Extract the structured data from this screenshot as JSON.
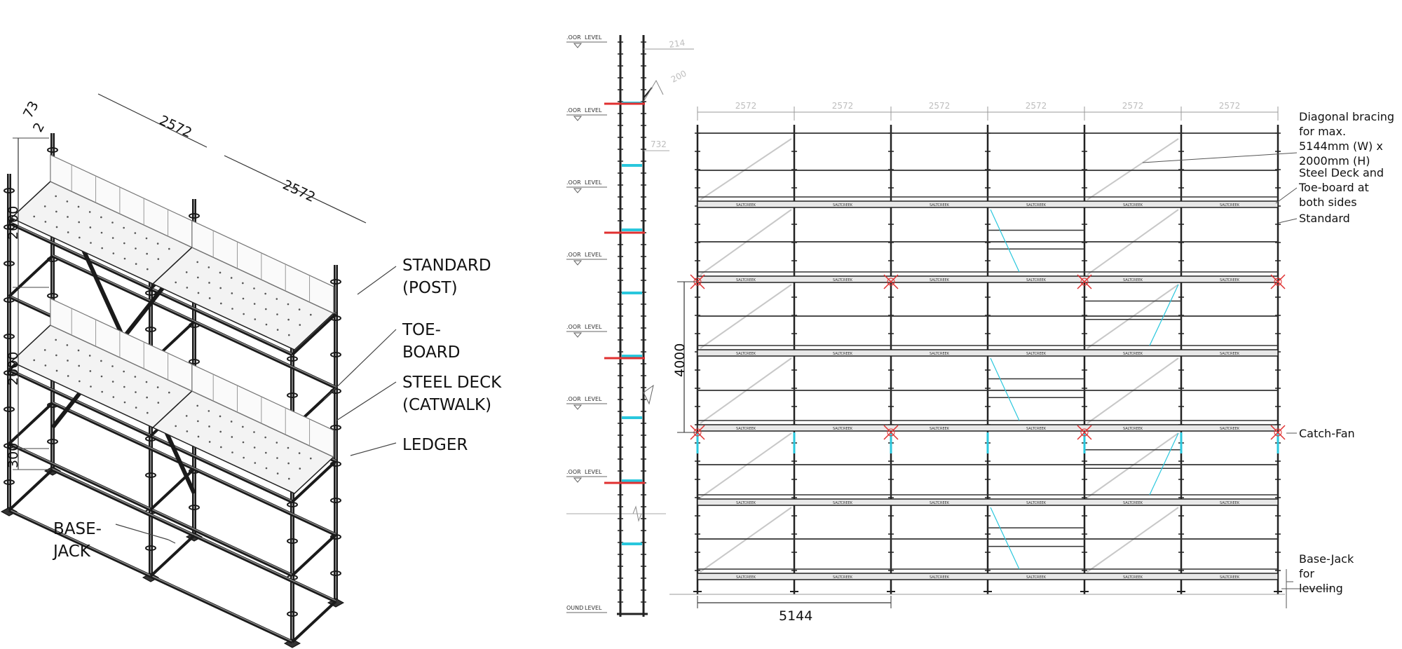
{
  "iso": {
    "dims": {
      "d73": "73",
      "d2": "2",
      "span1": "2572",
      "span2": "2572",
      "h1": "2000",
      "h2": "2000",
      "h3": "300"
    },
    "labels": {
      "standard": [
        "STANDARD",
        "(POST)"
      ],
      "toeboard": [
        "TOE-",
        "BOARD"
      ],
      "deck": [
        "STEEL DECK",
        "(CATWALK)"
      ],
      "ledger": "LEDGER",
      "basejack": [
        "BASE-",
        "JACK"
      ]
    }
  },
  "section": {
    "level_label": "LEVEL",
    "level_prefix": ".OOR",
    "ground_prefix": "OUND",
    "dim_732": "732",
    "dim_214": "214",
    "dim_200": "200"
  },
  "elevation": {
    "bay_label": "2572",
    "bay_count": 6,
    "dim_4000": "4000",
    "dim_5144": "5144",
    "deck_tag": "SALTCREEK",
    "annotations": {
      "bracing": [
        "Diagonal bracing",
        "for max.",
        "5144mm (W) x",
        "2000mm (H)"
      ],
      "deck": [
        "Steel Deck and",
        "Toe-board at",
        "both sides"
      ],
      "standard": "Standard",
      "catchfan": "Catch-Fan",
      "basejack": [
        "Base-Jack",
        "for",
        "leveling"
      ]
    }
  },
  "colors": {
    "line": "#222222",
    "cyan": "#29c7dd",
    "red": "#e03030",
    "grey": "#bdbdbd",
    "brace": "#c8c8c8"
  }
}
